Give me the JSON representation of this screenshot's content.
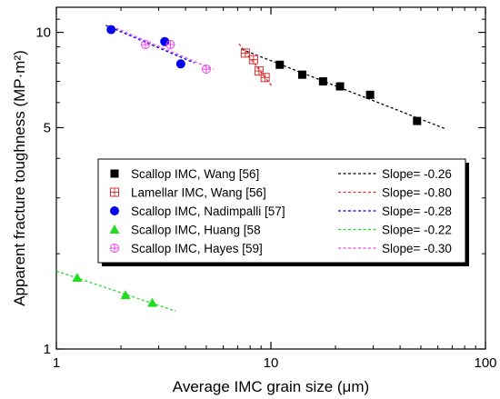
{
  "chart_data": {
    "type": "scatter",
    "xscale": "log",
    "yscale": "log",
    "xlim": [
      1,
      100
    ],
    "ylim": [
      1,
      12
    ],
    "xlabel": "Average IMC grain size (μm)",
    "ylabel": "Apparent fracture toughness (MP·m²)",
    "xticks": [
      {
        "value": 1,
        "label": "1"
      },
      {
        "value": 10,
        "label": "10"
      },
      {
        "value": 100,
        "label": "100"
      }
    ],
    "yticks": [
      {
        "value": 1,
        "label": "1"
      },
      {
        "value": 5,
        "label": "5"
      },
      {
        "value": 10,
        "label": "10"
      }
    ],
    "legend_position": "center-right",
    "series": [
      {
        "name": "Scallop IMC, Wang [56]",
        "marker": "square",
        "color": "#000000",
        "x": [
          11,
          14,
          17.5,
          21,
          29,
          48
        ],
        "y": [
          7.9,
          7.35,
          7.0,
          6.75,
          6.35,
          5.25
        ],
        "fit_label": "Slope= -0.26",
        "fit_x": [
          7.3,
          65
        ]
      },
      {
        "name": "Lamellar IMC, Wang [56]",
        "marker": "square-cross",
        "color": "#e03030",
        "x": [
          7.6,
          8.3,
          8.8,
          9.4
        ],
        "y": [
          8.6,
          8.2,
          7.55,
          7.2
        ],
        "fit_label": "Slope= -0.80",
        "fit_x": [
          7.1,
          10.2
        ]
      },
      {
        "name": "Scallop IMC, Nadimpalli [57]",
        "marker": "circle",
        "color": "#0000ee",
        "x": [
          1.8,
          3.2,
          3.8
        ],
        "y": [
          10.2,
          9.35,
          7.95
        ],
        "fit_label": "Slope= -0.28",
        "fit_x": [
          1.7,
          4.4
        ]
      },
      {
        "name": "Scallop IMC, Huang [58",
        "marker": "triangle",
        "color": "#22dd22",
        "x": [
          1.25,
          2.1,
          2.8
        ],
        "y": [
          1.68,
          1.48,
          1.4
        ],
        "fit_label": "Slope= -0.22",
        "fit_x": [
          1.0,
          3.6
        ]
      },
      {
        "name": "Scallop IMC, Hayes [59]",
        "marker": "circle-cross",
        "color": "#ee44ee",
        "x": [
          2.6,
          3.4,
          5.0
        ],
        "y": [
          9.15,
          9.15,
          7.65
        ],
        "fit_label": "Slope= -0.30",
        "fit_x": [
          1.9,
          5.4
        ]
      }
    ]
  }
}
